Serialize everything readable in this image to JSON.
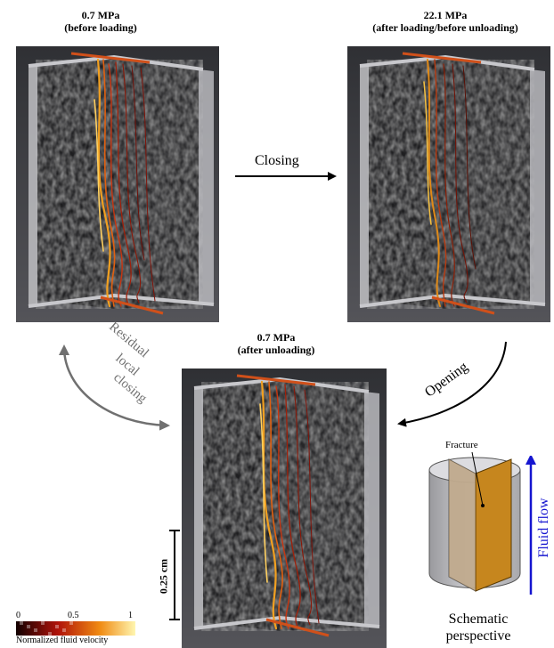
{
  "panels": {
    "top_left": {
      "pressure": "0.7 MPa",
      "state": "(before loading)"
    },
    "top_right": {
      "pressure": "22.1 MPa",
      "state": "(after loading/before unloading)"
    },
    "bottom": {
      "pressure": "0.7 MPa",
      "state": "(after unloading)"
    }
  },
  "arrows": {
    "closing": "Closing",
    "opening": "Opening",
    "residual_line1": "Residual",
    "residual_line2": "local",
    "residual_line3": "closing"
  },
  "scale_bar": {
    "label": "0.25 cm"
  },
  "colorbar": {
    "ticks": [
      "0",
      "0.5",
      "1"
    ],
    "caption": "Normalized fluid velocity"
  },
  "schematic": {
    "fracture_label": "Fracture",
    "flow_label": "Fluid flow",
    "caption_line1": "Schematic",
    "caption_line2": "perspective"
  },
  "colors": {
    "background_panel": "#3a3a3e",
    "plane_gray": "#b9b9bd",
    "fracture_orange": "#d98a1f",
    "flow_blue": "#1515d0",
    "residual_arrow_gray": "#707070"
  }
}
